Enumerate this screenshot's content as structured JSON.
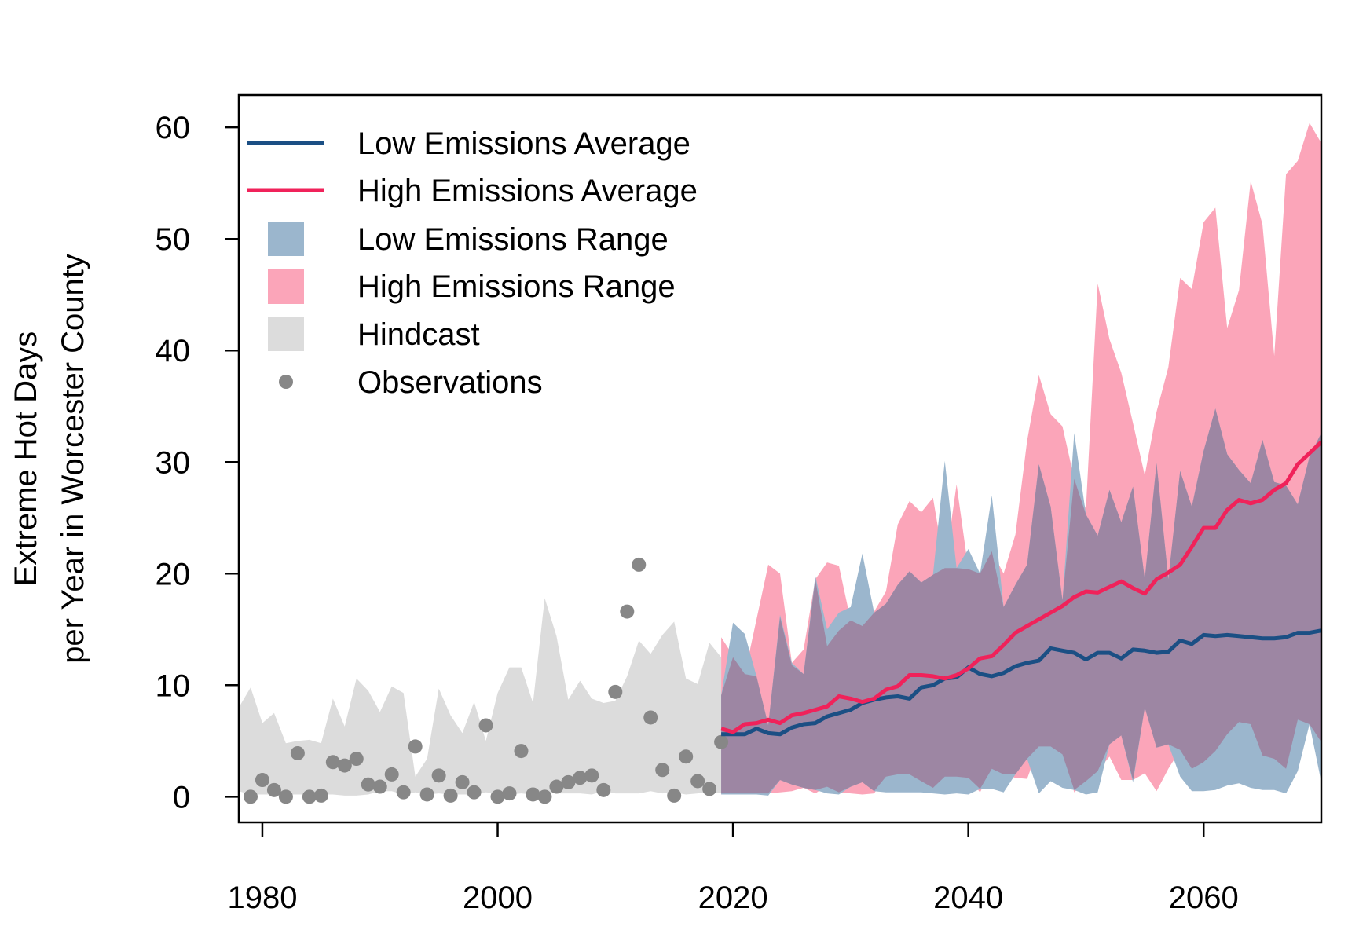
{
  "chart_data": {
    "type": "line",
    "title": "",
    "xlabel": "",
    "ylabel": [
      "Extreme Hot Days",
      "per Year in Worcester County"
    ],
    "xlim": [
      1978,
      2070
    ],
    "ylim": [
      -2.3,
      62.9
    ],
    "xticks": [
      1980,
      2000,
      2020,
      2040,
      2060
    ],
    "yticks": [
      0,
      10,
      20,
      30,
      40,
      50,
      60
    ],
    "grid": false,
    "legend_position": "top-left",
    "legend": [
      {
        "label": "Low Emissions Average",
        "type": "line",
        "color": "#1b4f84"
      },
      {
        "label": "High Emissions Average",
        "type": "line",
        "color": "#f0225a"
      },
      {
        "label": "Low Emissions Range",
        "type": "fill",
        "color": "#9bb6cd"
      },
      {
        "label": "High Emissions Range",
        "type": "fill",
        "color": "#fba5b9"
      },
      {
        "label": "Hindcast",
        "type": "fill",
        "color": "#dcdcdc"
      },
      {
        "label": "Observations",
        "type": "point",
        "color": "#878787"
      }
    ],
    "colors": {
      "low_avg": "#1b4f84",
      "high_avg": "#f0225a",
      "low_range": "#9bb6cd",
      "high_range": "#fba5b9",
      "overlap": "#9d86a3",
      "hindcast": "#dcdcdc",
      "observations": "#878787"
    },
    "hindcast": {
      "x": [
        1978,
        1979,
        1980,
        1981,
        1982,
        1983,
        1984,
        1985,
        1986,
        1987,
        1988,
        1989,
        1990,
        1991,
        1992,
        1993,
        1994,
        1995,
        1996,
        1997,
        1998,
        1999,
        2000,
        2001,
        2002,
        2003,
        2004,
        2005,
        2006,
        2007,
        2008,
        2009,
        2010,
        2011,
        2012,
        2013,
        2014,
        2015,
        2016,
        2017,
        2018,
        2019
      ],
      "upper": [
        8,
        9.8,
        6.6,
        7.5,
        4.8,
        5,
        5.1,
        4.8,
        8.8,
        6.3,
        10.6,
        9.5,
        7.6,
        9.9,
        9.3,
        1.8,
        3.4,
        9.7,
        7.3,
        5.7,
        8.5,
        5,
        9.3,
        11.6,
        11.6,
        8.4,
        17.8,
        14.4,
        8.7,
        10.4,
        8.8,
        8.4,
        8.6,
        10.8,
        14,
        12.8,
        14.5,
        15.7,
        10.6,
        10.1,
        13.8,
        12.5
      ],
      "lower": [
        0.5,
        0.2,
        0.2,
        0.2,
        0.2,
        0.2,
        0.2,
        0.2,
        0.2,
        0.1,
        0.1,
        0.2,
        0.5,
        0.5,
        0.2,
        0.4,
        0.2,
        0.3,
        0.2,
        0.2,
        0.2,
        0.4,
        0.3,
        0.2,
        0.3,
        0.2,
        0.4,
        0.3,
        0.3,
        0.3,
        0.2,
        0.5,
        0.3,
        0.3,
        0.3,
        0.5,
        0.3,
        0.4,
        0.2,
        0.3,
        0.4,
        0.3
      ]
    },
    "high_range": {
      "x": [
        2019,
        2021,
        2023,
        2024,
        2025,
        2026,
        2027,
        2028,
        2029,
        2030,
        2031,
        2032,
        2033,
        2034,
        2035,
        2036,
        2037,
        2038,
        2039,
        2040,
        2041,
        2042,
        2043,
        2044,
        2045,
        2046,
        2047,
        2048,
        2049,
        2050,
        2051,
        2052,
        2053,
        2054,
        2055,
        2056,
        2057,
        2058,
        2059,
        2060,
        2061,
        2062,
        2063,
        2064,
        2065,
        2066,
        2067,
        2068,
        2069,
        2070
      ],
      "upper": [
        14.3,
        11,
        20.8,
        20,
        12,
        13.2,
        19.5,
        21,
        20.7,
        15.8,
        15.3,
        16.6,
        18.4,
        24.4,
        26.5,
        25.5,
        26.8,
        20.5,
        28,
        20.4,
        20,
        22,
        20,
        23.5,
        31.9,
        37.8,
        34.3,
        33.2,
        28.5,
        25.8,
        46,
        41,
        38,
        33.5,
        28.8,
        34.5,
        38.5,
        46.5,
        45.5,
        51.5,
        52.8,
        42,
        45.4,
        55.2,
        51.3,
        39.5,
        55.8,
        57,
        60.4,
        58.6
      ],
      "lower": [
        0.2,
        0.2,
        0.3,
        0.4,
        0.5,
        0.8,
        0.3,
        1,
        0.4,
        0.3,
        0.2,
        0.3,
        1.8,
        2,
        2,
        1.4,
        0.8,
        1.8,
        1.8,
        1.7,
        0.4,
        2.5,
        2,
        1.7,
        1.6,
        4.5,
        4.5,
        3.8,
        0.4,
        1.4,
        2.3,
        3.6,
        1.5,
        1.5,
        2.1,
        0.5,
        2.5,
        4.2,
        2.5,
        3.1,
        4.1,
        5.6,
        6.7,
        6.5,
        3.7,
        3.4,
        2.5,
        6.9,
        6.4,
        4.9
      ]
    },
    "low_range": {
      "x": [
        2019,
        2020,
        2021,
        2022,
        2023,
        2024,
        2025,
        2026,
        2027,
        2028,
        2029,
        2030,
        2031,
        2032,
        2033,
        2034,
        2035,
        2036,
        2037,
        2038,
        2039,
        2040,
        2041,
        2042,
        2043,
        2044,
        2045,
        2046,
        2047,
        2048,
        2049,
        2050,
        2051,
        2052,
        2053,
        2054,
        2055,
        2056,
        2057,
        2058,
        2059,
        2060,
        2061,
        2062,
        2063,
        2064,
        2065,
        2066,
        2067,
        2068,
        2069,
        2070
      ],
      "upper": [
        9.1,
        15.6,
        14.6,
        10.8,
        6.4,
        16.3,
        12,
        11,
        19.8,
        15,
        16.5,
        17,
        21.8,
        16.5,
        17.3,
        19,
        20.2,
        19.2,
        19.9,
        30.1,
        20.5,
        22.2,
        20,
        27,
        17,
        19,
        20.8,
        29.8,
        26,
        17.6,
        32.6,
        25.3,
        23.4,
        27.5,
        24.6,
        27.8,
        19.5,
        29.9,
        19.5,
        29.2,
        26,
        31,
        34.8,
        30.7,
        29.3,
        28.1,
        32,
        28.2,
        27.9,
        26.2,
        30.5,
        32.6
      ],
      "lower": [
        0.2,
        0.2,
        0.2,
        0.2,
        0.1,
        1.5,
        1.1,
        0.8,
        0.6,
        0.3,
        0.2,
        0.9,
        1.3,
        0.5,
        0.4,
        0.4,
        0.4,
        0.4,
        0.3,
        0.2,
        0.3,
        0.2,
        0.7,
        0.7,
        0.4,
        2,
        3.4,
        0.3,
        1.4,
        0.8,
        0.6,
        0.2,
        0.4,
        4.7,
        5.5,
        1.3,
        8,
        4.4,
        4.7,
        1.8,
        0.5,
        0.5,
        0.6,
        1,
        1.2,
        0.8,
        0.6,
        0.6,
        0.3,
        2.3,
        6.5,
        1.3
      ]
    },
    "overlap_range": {
      "x": [
        2019,
        2020,
        2021,
        2022,
        2023,
        2024,
        2025,
        2026,
        2027,
        2028,
        2029,
        2030,
        2031,
        2032,
        2033,
        2034,
        2035,
        2036,
        2037,
        2038,
        2039,
        2040,
        2041,
        2042,
        2043,
        2044,
        2045,
        2046,
        2047,
        2048,
        2049,
        2050,
        2051,
        2052,
        2053,
        2054,
        2055,
        2056,
        2057,
        2058,
        2059,
        2060,
        2061,
        2062,
        2063,
        2064,
        2065,
        2066,
        2067,
        2068,
        2069,
        2070
      ],
      "upper": [
        9.1,
        12.5,
        11,
        10.8,
        6.4,
        16.1,
        11.8,
        11,
        19.5,
        13.5,
        14.9,
        15.8,
        15.3,
        16.5,
        17.3,
        19,
        20.2,
        19.2,
        19.9,
        20.5,
        20.5,
        20.4,
        20,
        22,
        17,
        19,
        20.8,
        29.8,
        26,
        17.6,
        28.5,
        25.3,
        23.4,
        27.5,
        24.6,
        27.8,
        19.5,
        29.9,
        19.5,
        29.2,
        26,
        31,
        34.8,
        30.7,
        29.3,
        28.1,
        32,
        28.2,
        27.9,
        26.2,
        30.5,
        32.6
      ],
      "lower": [
        0.3,
        0.3,
        0.3,
        0.3,
        0.3,
        1.5,
        1.1,
        0.8,
        0.6,
        0.9,
        0.4,
        0.9,
        1.3,
        0.5,
        1.8,
        2,
        2,
        1.4,
        0.8,
        1.8,
        1.8,
        1.7,
        0.7,
        2.5,
        2,
        2,
        3.4,
        4.5,
        4.5,
        3.8,
        0.6,
        1.4,
        2.3,
        4.7,
        5.5,
        1.5,
        8,
        4.4,
        4.7,
        4.2,
        2.5,
        3.1,
        4.1,
        5.6,
        6.7,
        6.5,
        3.7,
        3.4,
        2.5,
        6.9,
        6.5,
        4.9
      ]
    },
    "observations": {
      "x": [
        1979,
        1980,
        1981,
        1982,
        1983,
        1984,
        1985,
        1986,
        1987,
        1988,
        1989,
        1990,
        1991,
        1992,
        1993,
        1994,
        1995,
        1996,
        1997,
        1998,
        1999,
        2000,
        2001,
        2002,
        2003,
        2004,
        2005,
        2006,
        2007,
        2008,
        2009,
        2010,
        2011,
        2012,
        2013,
        2014,
        2015,
        2016,
        2017,
        2018,
        2019
      ],
      "y": [
        0,
        1.5,
        0.6,
        0,
        3.9,
        0,
        0.1,
        3.1,
        2.8,
        3.4,
        1.1,
        0.9,
        2,
        0.4,
        4.5,
        0.2,
        1.9,
        0.1,
        1.3,
        0.4,
        6.4,
        0,
        0.3,
        4.1,
        0.2,
        0,
        0.9,
        1.3,
        1.7,
        1.9,
        0.6,
        9.4,
        16.6,
        20.8,
        7.1,
        2.4,
        0.1,
        3.6,
        1.4,
        0.7,
        4.9
      ]
    },
    "series": [
      {
        "name": "Low Emissions Average",
        "x": [
          2019,
          2020,
          2021,
          2022,
          2023,
          2024,
          2025,
          2026,
          2027,
          2028,
          2029,
          2030,
          2031,
          2032,
          2033,
          2034,
          2035,
          2036,
          2037,
          2038,
          2039,
          2040,
          2041,
          2042,
          2043,
          2044,
          2045,
          2046,
          2047,
          2048,
          2049,
          2050,
          2051,
          2052,
          2053,
          2054,
          2055,
          2056,
          2057,
          2058,
          2059,
          2060,
          2061,
          2062,
          2063,
          2064,
          2065,
          2066,
          2067,
          2068,
          2069,
          2070
        ],
        "y": [
          5.6,
          5.6,
          5.6,
          6.1,
          5.7,
          5.6,
          6.2,
          6.5,
          6.6,
          7.2,
          7.5,
          7.8,
          8.4,
          8.7,
          8.9,
          9,
          8.8,
          9.8,
          10,
          10.6,
          10.7,
          11.6,
          11,
          10.8,
          11.1,
          11.7,
          12,
          12.2,
          13.3,
          13.1,
          12.9,
          12.3,
          12.9,
          12.9,
          12.4,
          13.2,
          13.1,
          12.9,
          13,
          14,
          13.7,
          14.5,
          14.4,
          14.5,
          14.4,
          14.3,
          14.2,
          14.2,
          14.3,
          14.7,
          14.7,
          14.9
        ]
      },
      {
        "name": "High Emissions Average",
        "x": [
          2019,
          2020,
          2021,
          2022,
          2023,
          2024,
          2025,
          2026,
          2027,
          2028,
          2029,
          2030,
          2031,
          2032,
          2033,
          2034,
          2035,
          2036,
          2037,
          2038,
          2039,
          2040,
          2041,
          2042,
          2043,
          2044,
          2045,
          2046,
          2047,
          2048,
          2049,
          2050,
          2051,
          2052,
          2053,
          2054,
          2055,
          2056,
          2057,
          2058,
          2059,
          2060,
          2061,
          2062,
          2063,
          2064,
          2065,
          2066,
          2067,
          2068,
          2069,
          2070
        ],
        "y": [
          6.1,
          5.8,
          6.5,
          6.6,
          6.9,
          6.6,
          7.3,
          7.5,
          7.8,
          8.1,
          9,
          8.8,
          8.5,
          8.8,
          9.6,
          9.9,
          10.9,
          10.9,
          10.8,
          10.6,
          10.9,
          11.5,
          12.4,
          12.6,
          13.6,
          14.7,
          15.3,
          15.9,
          16.5,
          17.1,
          17.9,
          18.4,
          18.3,
          18.8,
          19.3,
          18.7,
          18.2,
          19.5,
          20.1,
          20.8,
          22.4,
          24.1,
          24.1,
          25.7,
          26.6,
          26.3,
          26.6,
          27.5,
          28.1,
          29.8,
          30.8,
          31.8
        ]
      }
    ]
  }
}
